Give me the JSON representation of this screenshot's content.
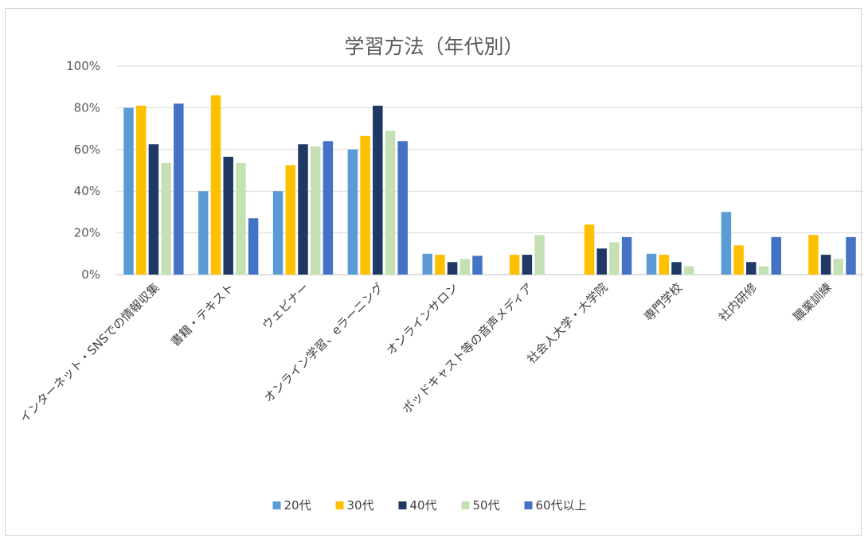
{
  "chart_data": {
    "type": "bar",
    "title": "学習方法（年代別）",
    "categories": [
      "インターネット・SNSでの情報収集",
      "書籍・テキスト",
      "ウェビナー",
      "オンライン学習、eラーニング",
      "オンラインサロン",
      "ポッドキャスト等の音声メディア",
      "社会人大学・大学院",
      "専門学校",
      "社内研修",
      "職業訓練"
    ],
    "series": [
      {
        "name": "20代",
        "color": "#5B9BD5",
        "values": [
          80,
          40,
          40,
          60,
          10,
          0,
          0,
          10,
          30,
          0
        ]
      },
      {
        "name": "30代",
        "color": "#FFC000",
        "values": [
          81,
          86,
          52.5,
          66.5,
          9.5,
          9.5,
          24,
          9.5,
          14,
          19
        ]
      },
      {
        "name": "40代",
        "color": "#203864",
        "values": [
          62.5,
          56.5,
          62.5,
          81,
          6,
          9.5,
          12.5,
          6,
          6,
          9.5
        ]
      },
      {
        "name": "50代",
        "color": "#C5E0B4",
        "values": [
          53.5,
          53.5,
          61.5,
          69,
          7.5,
          19,
          15.5,
          4,
          4,
          7.5
        ]
      },
      {
        "name": "60代以上",
        "color": "#4472C4",
        "values": [
          82,
          27,
          64,
          64,
          9,
          0,
          18,
          0,
          18,
          18
        ]
      }
    ],
    "yticks": [
      "0%",
      "20%",
      "40%",
      "60%",
      "80%",
      "100%"
    ],
    "ylim": [
      0,
      100
    ],
    "grid": true,
    "legend": "bottom"
  }
}
